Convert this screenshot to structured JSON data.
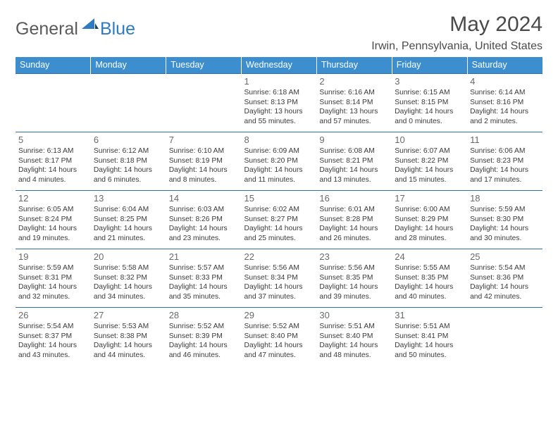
{
  "brand": {
    "part1": "General",
    "part2": "Blue"
  },
  "title": "May 2024",
  "location": "Irwin, Pennsylvania, United States",
  "colors": {
    "header_bg": "#3c8ecf",
    "row_border": "#2f6fa8",
    "brand_gray": "#5a5a5a",
    "brand_blue": "#2f7bc1"
  },
  "weekdays": [
    "Sunday",
    "Monday",
    "Tuesday",
    "Wednesday",
    "Thursday",
    "Friday",
    "Saturday"
  ],
  "weeks": [
    [
      null,
      null,
      null,
      {
        "n": "1",
        "sr": "6:18 AM",
        "ss": "8:13 PM",
        "dl": "13 hours and 55 minutes."
      },
      {
        "n": "2",
        "sr": "6:16 AM",
        "ss": "8:14 PM",
        "dl": "13 hours and 57 minutes."
      },
      {
        "n": "3",
        "sr": "6:15 AM",
        "ss": "8:15 PM",
        "dl": "14 hours and 0 minutes."
      },
      {
        "n": "4",
        "sr": "6:14 AM",
        "ss": "8:16 PM",
        "dl": "14 hours and 2 minutes."
      }
    ],
    [
      {
        "n": "5",
        "sr": "6:13 AM",
        "ss": "8:17 PM",
        "dl": "14 hours and 4 minutes."
      },
      {
        "n": "6",
        "sr": "6:12 AM",
        "ss": "8:18 PM",
        "dl": "14 hours and 6 minutes."
      },
      {
        "n": "7",
        "sr": "6:10 AM",
        "ss": "8:19 PM",
        "dl": "14 hours and 8 minutes."
      },
      {
        "n": "8",
        "sr": "6:09 AM",
        "ss": "8:20 PM",
        "dl": "14 hours and 11 minutes."
      },
      {
        "n": "9",
        "sr": "6:08 AM",
        "ss": "8:21 PM",
        "dl": "14 hours and 13 minutes."
      },
      {
        "n": "10",
        "sr": "6:07 AM",
        "ss": "8:22 PM",
        "dl": "14 hours and 15 minutes."
      },
      {
        "n": "11",
        "sr": "6:06 AM",
        "ss": "8:23 PM",
        "dl": "14 hours and 17 minutes."
      }
    ],
    [
      {
        "n": "12",
        "sr": "6:05 AM",
        "ss": "8:24 PM",
        "dl": "14 hours and 19 minutes."
      },
      {
        "n": "13",
        "sr": "6:04 AM",
        "ss": "8:25 PM",
        "dl": "14 hours and 21 minutes."
      },
      {
        "n": "14",
        "sr": "6:03 AM",
        "ss": "8:26 PM",
        "dl": "14 hours and 23 minutes."
      },
      {
        "n": "15",
        "sr": "6:02 AM",
        "ss": "8:27 PM",
        "dl": "14 hours and 25 minutes."
      },
      {
        "n": "16",
        "sr": "6:01 AM",
        "ss": "8:28 PM",
        "dl": "14 hours and 26 minutes."
      },
      {
        "n": "17",
        "sr": "6:00 AM",
        "ss": "8:29 PM",
        "dl": "14 hours and 28 minutes."
      },
      {
        "n": "18",
        "sr": "5:59 AM",
        "ss": "8:30 PM",
        "dl": "14 hours and 30 minutes."
      }
    ],
    [
      {
        "n": "19",
        "sr": "5:59 AM",
        "ss": "8:31 PM",
        "dl": "14 hours and 32 minutes."
      },
      {
        "n": "20",
        "sr": "5:58 AM",
        "ss": "8:32 PM",
        "dl": "14 hours and 34 minutes."
      },
      {
        "n": "21",
        "sr": "5:57 AM",
        "ss": "8:33 PM",
        "dl": "14 hours and 35 minutes."
      },
      {
        "n": "22",
        "sr": "5:56 AM",
        "ss": "8:34 PM",
        "dl": "14 hours and 37 minutes."
      },
      {
        "n": "23",
        "sr": "5:56 AM",
        "ss": "8:35 PM",
        "dl": "14 hours and 39 minutes."
      },
      {
        "n": "24",
        "sr": "5:55 AM",
        "ss": "8:35 PM",
        "dl": "14 hours and 40 minutes."
      },
      {
        "n": "25",
        "sr": "5:54 AM",
        "ss": "8:36 PM",
        "dl": "14 hours and 42 minutes."
      }
    ],
    [
      {
        "n": "26",
        "sr": "5:54 AM",
        "ss": "8:37 PM",
        "dl": "14 hours and 43 minutes."
      },
      {
        "n": "27",
        "sr": "5:53 AM",
        "ss": "8:38 PM",
        "dl": "14 hours and 44 minutes."
      },
      {
        "n": "28",
        "sr": "5:52 AM",
        "ss": "8:39 PM",
        "dl": "14 hours and 46 minutes."
      },
      {
        "n": "29",
        "sr": "5:52 AM",
        "ss": "8:40 PM",
        "dl": "14 hours and 47 minutes."
      },
      {
        "n": "30",
        "sr": "5:51 AM",
        "ss": "8:40 PM",
        "dl": "14 hours and 48 minutes."
      },
      {
        "n": "31",
        "sr": "5:51 AM",
        "ss": "8:41 PM",
        "dl": "14 hours and 50 minutes."
      },
      null
    ]
  ],
  "labels": {
    "sunrise": "Sunrise:",
    "sunset": "Sunset:",
    "daylight": "Daylight:"
  }
}
